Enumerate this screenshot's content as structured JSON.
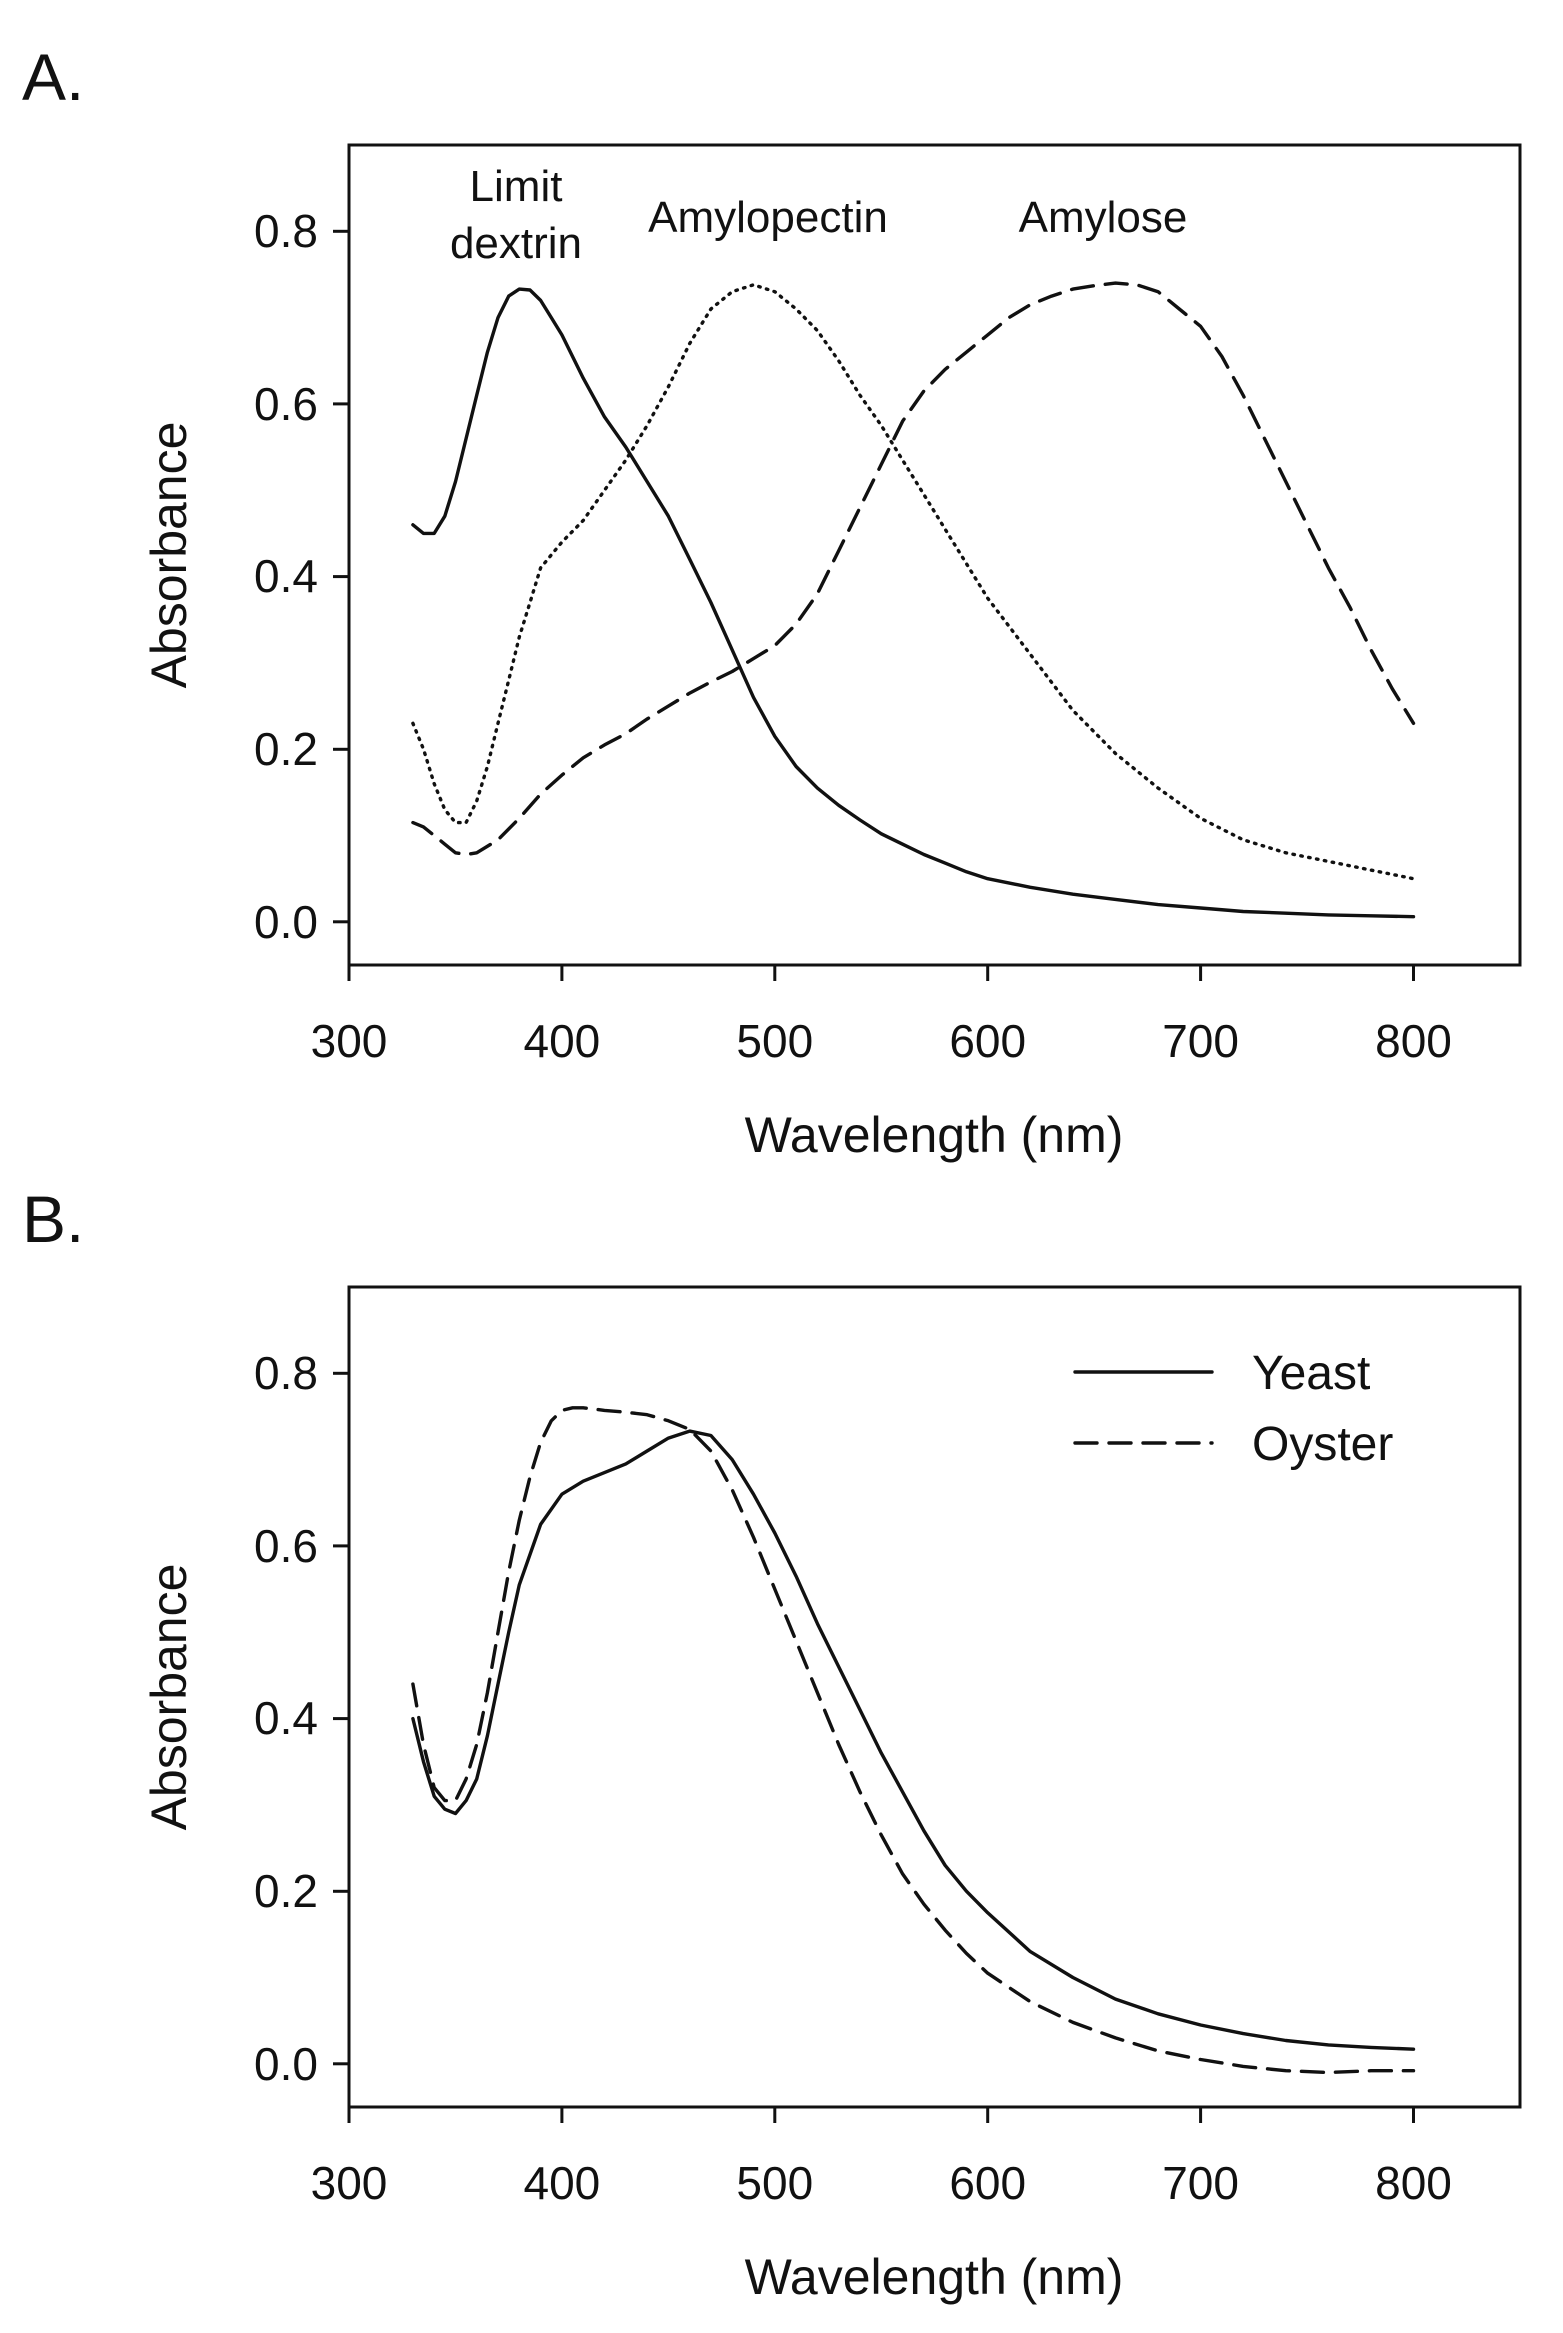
{
  "chart_data": [
    {
      "type": "line",
      "panel_label": "A.",
      "title": "",
      "xlabel": "Wavelength (nm)",
      "ylabel": "Absorbance",
      "xlim": [
        300,
        850
      ],
      "ylim": [
        -0.05,
        0.9
      ],
      "xticks": [
        300,
        400,
        500,
        600,
        700,
        800
      ],
      "yticks": [
        0.0,
        0.2,
        0.4,
        0.6,
        0.8
      ],
      "xtick_labels": [
        "300",
        "400",
        "500",
        "600",
        "700",
        "800"
      ],
      "ytick_labels": [
        "0.0",
        "0.2",
        "0.4",
        "0.6",
        "0.8"
      ],
      "legend": "none",
      "annotations": [
        {
          "series": "limit_dextrin",
          "lines": [
            "Limit",
            "dextrin"
          ],
          "x": 385,
          "y": 0.8
        },
        {
          "series": "amylopectin",
          "lines": [
            "Amylopectin"
          ],
          "x": 500,
          "y": 0.81
        },
        {
          "series": "amylose",
          "lines": [
            "Amylose"
          ],
          "x": 670,
          "y": 0.81
        }
      ],
      "series": [
        {
          "id": "limit_dextrin",
          "name": "Limit dextrin",
          "style": "solid",
          "x": [
            330,
            335,
            340,
            345,
            350,
            355,
            360,
            365,
            370,
            375,
            380,
            385,
            390,
            395,
            400,
            410,
            420,
            430,
            440,
            450,
            460,
            470,
            480,
            490,
            500,
            510,
            520,
            530,
            540,
            550,
            560,
            570,
            580,
            590,
            600,
            620,
            640,
            660,
            680,
            700,
            720,
            740,
            760,
            780,
            800
          ],
          "y": [
            0.46,
            0.45,
            0.45,
            0.47,
            0.51,
            0.56,
            0.61,
            0.66,
            0.7,
            0.725,
            0.733,
            0.732,
            0.72,
            0.7,
            0.68,
            0.63,
            0.585,
            0.55,
            0.51,
            0.47,
            0.42,
            0.37,
            0.315,
            0.26,
            0.215,
            0.18,
            0.155,
            0.135,
            0.118,
            0.102,
            0.09,
            0.078,
            0.068,
            0.058,
            0.05,
            0.04,
            0.032,
            0.026,
            0.02,
            0.016,
            0.012,
            0.01,
            0.008,
            0.007,
            0.006
          ]
        },
        {
          "id": "amylopectin",
          "name": "Amylopectin",
          "style": "dotted",
          "x": [
            330,
            335,
            340,
            345,
            350,
            355,
            360,
            365,
            370,
            375,
            380,
            385,
            390,
            400,
            410,
            420,
            430,
            440,
            450,
            460,
            470,
            480,
            490,
            500,
            510,
            520,
            530,
            540,
            550,
            560,
            570,
            580,
            590,
            600,
            620,
            640,
            660,
            680,
            700,
            720,
            740,
            760,
            780,
            800
          ],
          "y": [
            0.23,
            0.2,
            0.16,
            0.13,
            0.115,
            0.115,
            0.14,
            0.18,
            0.23,
            0.28,
            0.33,
            0.37,
            0.41,
            0.44,
            0.465,
            0.5,
            0.535,
            0.575,
            0.62,
            0.67,
            0.71,
            0.73,
            0.738,
            0.73,
            0.71,
            0.685,
            0.65,
            0.61,
            0.575,
            0.535,
            0.495,
            0.455,
            0.415,
            0.375,
            0.31,
            0.245,
            0.195,
            0.155,
            0.12,
            0.095,
            0.08,
            0.07,
            0.06,
            0.05
          ]
        },
        {
          "id": "amylose",
          "name": "Amylose",
          "style": "dashed",
          "x": [
            330,
            335,
            340,
            345,
            350,
            355,
            360,
            370,
            380,
            390,
            400,
            410,
            420,
            430,
            440,
            450,
            460,
            470,
            480,
            490,
            500,
            510,
            520,
            530,
            540,
            550,
            560,
            570,
            580,
            590,
            600,
            610,
            620,
            630,
            640,
            650,
            660,
            670,
            680,
            690,
            700,
            710,
            720,
            730,
            740,
            750,
            760,
            770,
            780,
            790,
            800
          ],
          "y": [
            0.115,
            0.11,
            0.1,
            0.09,
            0.08,
            0.078,
            0.08,
            0.095,
            0.12,
            0.148,
            0.17,
            0.19,
            0.205,
            0.218,
            0.235,
            0.25,
            0.265,
            0.278,
            0.29,
            0.305,
            0.32,
            0.345,
            0.38,
            0.43,
            0.48,
            0.53,
            0.58,
            0.615,
            0.64,
            0.66,
            0.68,
            0.7,
            0.715,
            0.725,
            0.733,
            0.737,
            0.74,
            0.738,
            0.73,
            0.71,
            0.69,
            0.655,
            0.61,
            0.56,
            0.51,
            0.46,
            0.41,
            0.365,
            0.315,
            0.27,
            0.23
          ]
        }
      ]
    },
    {
      "type": "line",
      "panel_label": "B.",
      "title": "",
      "xlabel": "Wavelength (nm)",
      "ylabel": "Absorbance",
      "xlim": [
        300,
        850
      ],
      "ylim": [
        -0.05,
        0.9
      ],
      "xticks": [
        300,
        400,
        500,
        600,
        700,
        800
      ],
      "yticks": [
        0.0,
        0.2,
        0.4,
        0.6,
        0.8
      ],
      "xtick_labels": [
        "300",
        "400",
        "500",
        "600",
        "700",
        "800"
      ],
      "ytick_labels": [
        "0.0",
        "0.2",
        "0.4",
        "0.6",
        "0.8"
      ],
      "legend": "top-right",
      "series": [
        {
          "id": "yeast",
          "name": "Yeast",
          "style": "solid",
          "x": [
            330,
            335,
            340,
            345,
            350,
            355,
            360,
            365,
            370,
            375,
            380,
            390,
            400,
            410,
            420,
            430,
            440,
            450,
            460,
            470,
            480,
            490,
            500,
            510,
            520,
            530,
            540,
            550,
            560,
            570,
            580,
            590,
            600,
            620,
            640,
            660,
            680,
            700,
            720,
            740,
            760,
            780,
            800
          ],
          "y": [
            0.4,
            0.35,
            0.31,
            0.295,
            0.29,
            0.305,
            0.33,
            0.38,
            0.44,
            0.5,
            0.555,
            0.625,
            0.66,
            0.675,
            0.685,
            0.695,
            0.71,
            0.725,
            0.733,
            0.728,
            0.7,
            0.66,
            0.615,
            0.565,
            0.51,
            0.46,
            0.41,
            0.36,
            0.315,
            0.27,
            0.23,
            0.2,
            0.175,
            0.13,
            0.1,
            0.075,
            0.058,
            0.045,
            0.035,
            0.027,
            0.022,
            0.019,
            0.017
          ]
        },
        {
          "id": "oyster",
          "name": "Oyster",
          "style": "dashed",
          "x": [
            330,
            335,
            340,
            345,
            350,
            355,
            360,
            365,
            370,
            375,
            380,
            385,
            390,
            395,
            400,
            405,
            410,
            420,
            430,
            440,
            450,
            460,
            470,
            480,
            490,
            500,
            510,
            520,
            530,
            540,
            550,
            560,
            570,
            580,
            590,
            600,
            620,
            640,
            660,
            680,
            700,
            720,
            740,
            760,
            780,
            800
          ],
          "y": [
            0.44,
            0.37,
            0.32,
            0.305,
            0.305,
            0.33,
            0.37,
            0.43,
            0.5,
            0.57,
            0.63,
            0.68,
            0.72,
            0.745,
            0.757,
            0.76,
            0.76,
            0.757,
            0.755,
            0.752,
            0.745,
            0.735,
            0.71,
            0.665,
            0.61,
            0.55,
            0.49,
            0.43,
            0.37,
            0.315,
            0.265,
            0.22,
            0.185,
            0.155,
            0.128,
            0.105,
            0.072,
            0.048,
            0.03,
            0.015,
            0.005,
            -0.003,
            -0.008,
            -0.01,
            -0.008,
            -0.008
          ]
        }
      ]
    }
  ]
}
